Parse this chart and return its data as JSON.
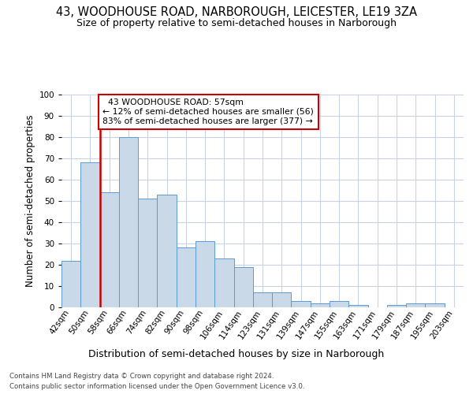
{
  "title1": "43, WOODHOUSE ROAD, NARBOROUGH, LEICESTER, LE19 3ZA",
  "title2": "Size of property relative to semi-detached houses in Narborough",
  "xlabel": "Distribution of semi-detached houses by size in Narborough",
  "ylabel": "Number of semi-detached properties",
  "categories": [
    "42sqm",
    "50sqm",
    "58sqm",
    "66sqm",
    "74sqm",
    "82sqm",
    "90sqm",
    "98sqm",
    "106sqm",
    "114sqm",
    "123sqm",
    "131sqm",
    "139sqm",
    "147sqm",
    "155sqm",
    "163sqm",
    "171sqm",
    "179sqm",
    "187sqm",
    "195sqm",
    "203sqm"
  ],
  "values": [
    22,
    68,
    54,
    80,
    51,
    53,
    28,
    31,
    23,
    19,
    7,
    7,
    3,
    2,
    3,
    1,
    0,
    1,
    2,
    2,
    0
  ],
  "bar_color": "#c9d9e8",
  "bar_edge_color": "#5b9bd5",
  "highlight_color": "#cc0000",
  "property_label": "43 WOODHOUSE ROAD: 57sqm",
  "pct_smaller": "12%",
  "n_smaller": 56,
  "pct_larger": "83%",
  "n_larger": 377,
  "annotation_box_color": "#cc0000",
  "ylim": [
    0,
    100
  ],
  "yticks": [
    0,
    10,
    20,
    30,
    40,
    50,
    60,
    70,
    80,
    90,
    100
  ],
  "grid_color": "#c8d4e4",
  "background_color": "#ffffff",
  "footnote1": "Contains HM Land Registry data © Crown copyright and database right 2024.",
  "footnote2": "Contains public sector information licensed under the Open Government Licence v3.0.",
  "title1_fontsize": 10.5,
  "title2_fontsize": 9,
  "tick_fontsize": 7.5,
  "ylabel_fontsize": 8.5,
  "xlabel_fontsize": 9,
  "annot_fontsize": 7.8,
  "footnote_fontsize": 6.2
}
